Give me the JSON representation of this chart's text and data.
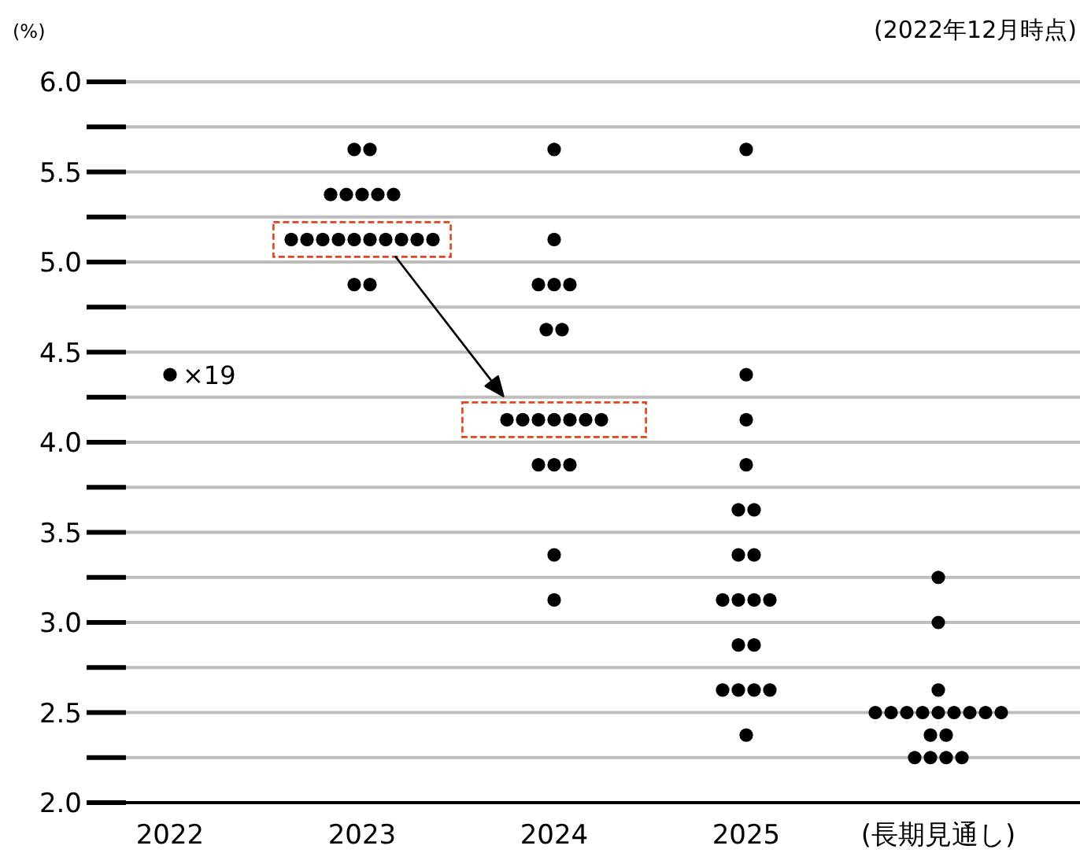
{
  "chart_data": {
    "type": "scatter",
    "ylabel": "(%)",
    "annotations": [
      "(2022年12月時点)",
      "×19"
    ],
    "categories": [
      "2022",
      "2023",
      "2024",
      "2025",
      "(長期見通し)"
    ],
    "ylim": [
      2,
      6
    ],
    "yticks": [
      {
        "value": 2,
        "label": "2.0"
      },
      {
        "value": 2.25,
        "label": null
      },
      {
        "value": 2.5,
        "label": "2.5"
      },
      {
        "value": 2.75,
        "label": null
      },
      {
        "value": 3,
        "label": "3.0"
      },
      {
        "value": 3.25,
        "label": null
      },
      {
        "value": 3.5,
        "label": "3.5"
      },
      {
        "value": 3.75,
        "label": null
      },
      {
        "value": 4,
        "label": "4.0"
      },
      {
        "value": 4.25,
        "label": null
      },
      {
        "value": 4.5,
        "label": "4.5"
      },
      {
        "value": 4.75,
        "label": null
      },
      {
        "value": 5,
        "label": "5.0"
      },
      {
        "value": 5.25,
        "label": null
      },
      {
        "value": 5.5,
        "label": "5.5"
      },
      {
        "value": 5.75,
        "label": null
      },
      {
        "value": 6,
        "label": "6.0"
      }
    ],
    "grid": "y",
    "marker": "circle",
    "series": [
      {
        "color": "#000000",
        "values": [
          4.375,
          5.625,
          5.625,
          5.625,
          3.25
        ]
      },
      {
        "color": "#000000",
        "values": [
          null,
          5.625,
          5.125,
          4.375,
          3.0
        ]
      },
      {
        "color": "#000000",
        "values": [
          null,
          5.375,
          4.875,
          4.125,
          2.625
        ]
      },
      {
        "color": "#000000",
        "values": [
          null,
          5.375,
          4.875,
          3.875,
          2.5
        ]
      },
      {
        "color": "#000000",
        "values": [
          null,
          5.375,
          4.875,
          3.625,
          2.5
        ]
      },
      {
        "color": "#000000",
        "values": [
          null,
          5.375,
          4.625,
          3.625,
          2.5
        ]
      },
      {
        "color": "#000000",
        "values": [
          null,
          5.375,
          4.625,
          3.375,
          2.5
        ]
      },
      {
        "color": "#000000",
        "values": [
          null,
          5.125,
          4.125,
          3.375,
          2.5
        ]
      },
      {
        "color": "#000000",
        "values": [
          null,
          5.125,
          4.125,
          3.125,
          2.5
        ]
      },
      {
        "color": "#000000",
        "values": [
          null,
          5.125,
          4.125,
          3.125,
          2.5
        ]
      },
      {
        "color": "#000000",
        "values": [
          null,
          5.125,
          4.125,
          3.125,
          2.5
        ]
      },
      {
        "color": "#000000",
        "values": [
          null,
          5.125,
          4.125,
          3.125,
          2.5
        ]
      },
      {
        "color": "#000000",
        "values": [
          null,
          5.125,
          4.125,
          2.875,
          2.375
        ]
      },
      {
        "color": "#000000",
        "values": [
          null,
          5.125,
          4.125,
          2.875,
          2.375
        ]
      },
      {
        "color": "#000000",
        "values": [
          null,
          5.125,
          3.875,
          2.625,
          2.25
        ]
      },
      {
        "color": "#000000",
        "values": [
          null,
          5.125,
          3.875,
          2.625,
          2.25
        ]
      },
      {
        "color": "#000000",
        "values": [
          null,
          5.125,
          3.875,
          2.625,
          2.25
        ]
      },
      {
        "color": "#000000",
        "values": [
          null,
          4.875,
          3.375,
          2.625,
          2.25
        ]
      },
      {
        "color": "#000000",
        "values": [
          null,
          4.875,
          3.125,
          2.375,
          null
        ]
      }
    ]
  }
}
